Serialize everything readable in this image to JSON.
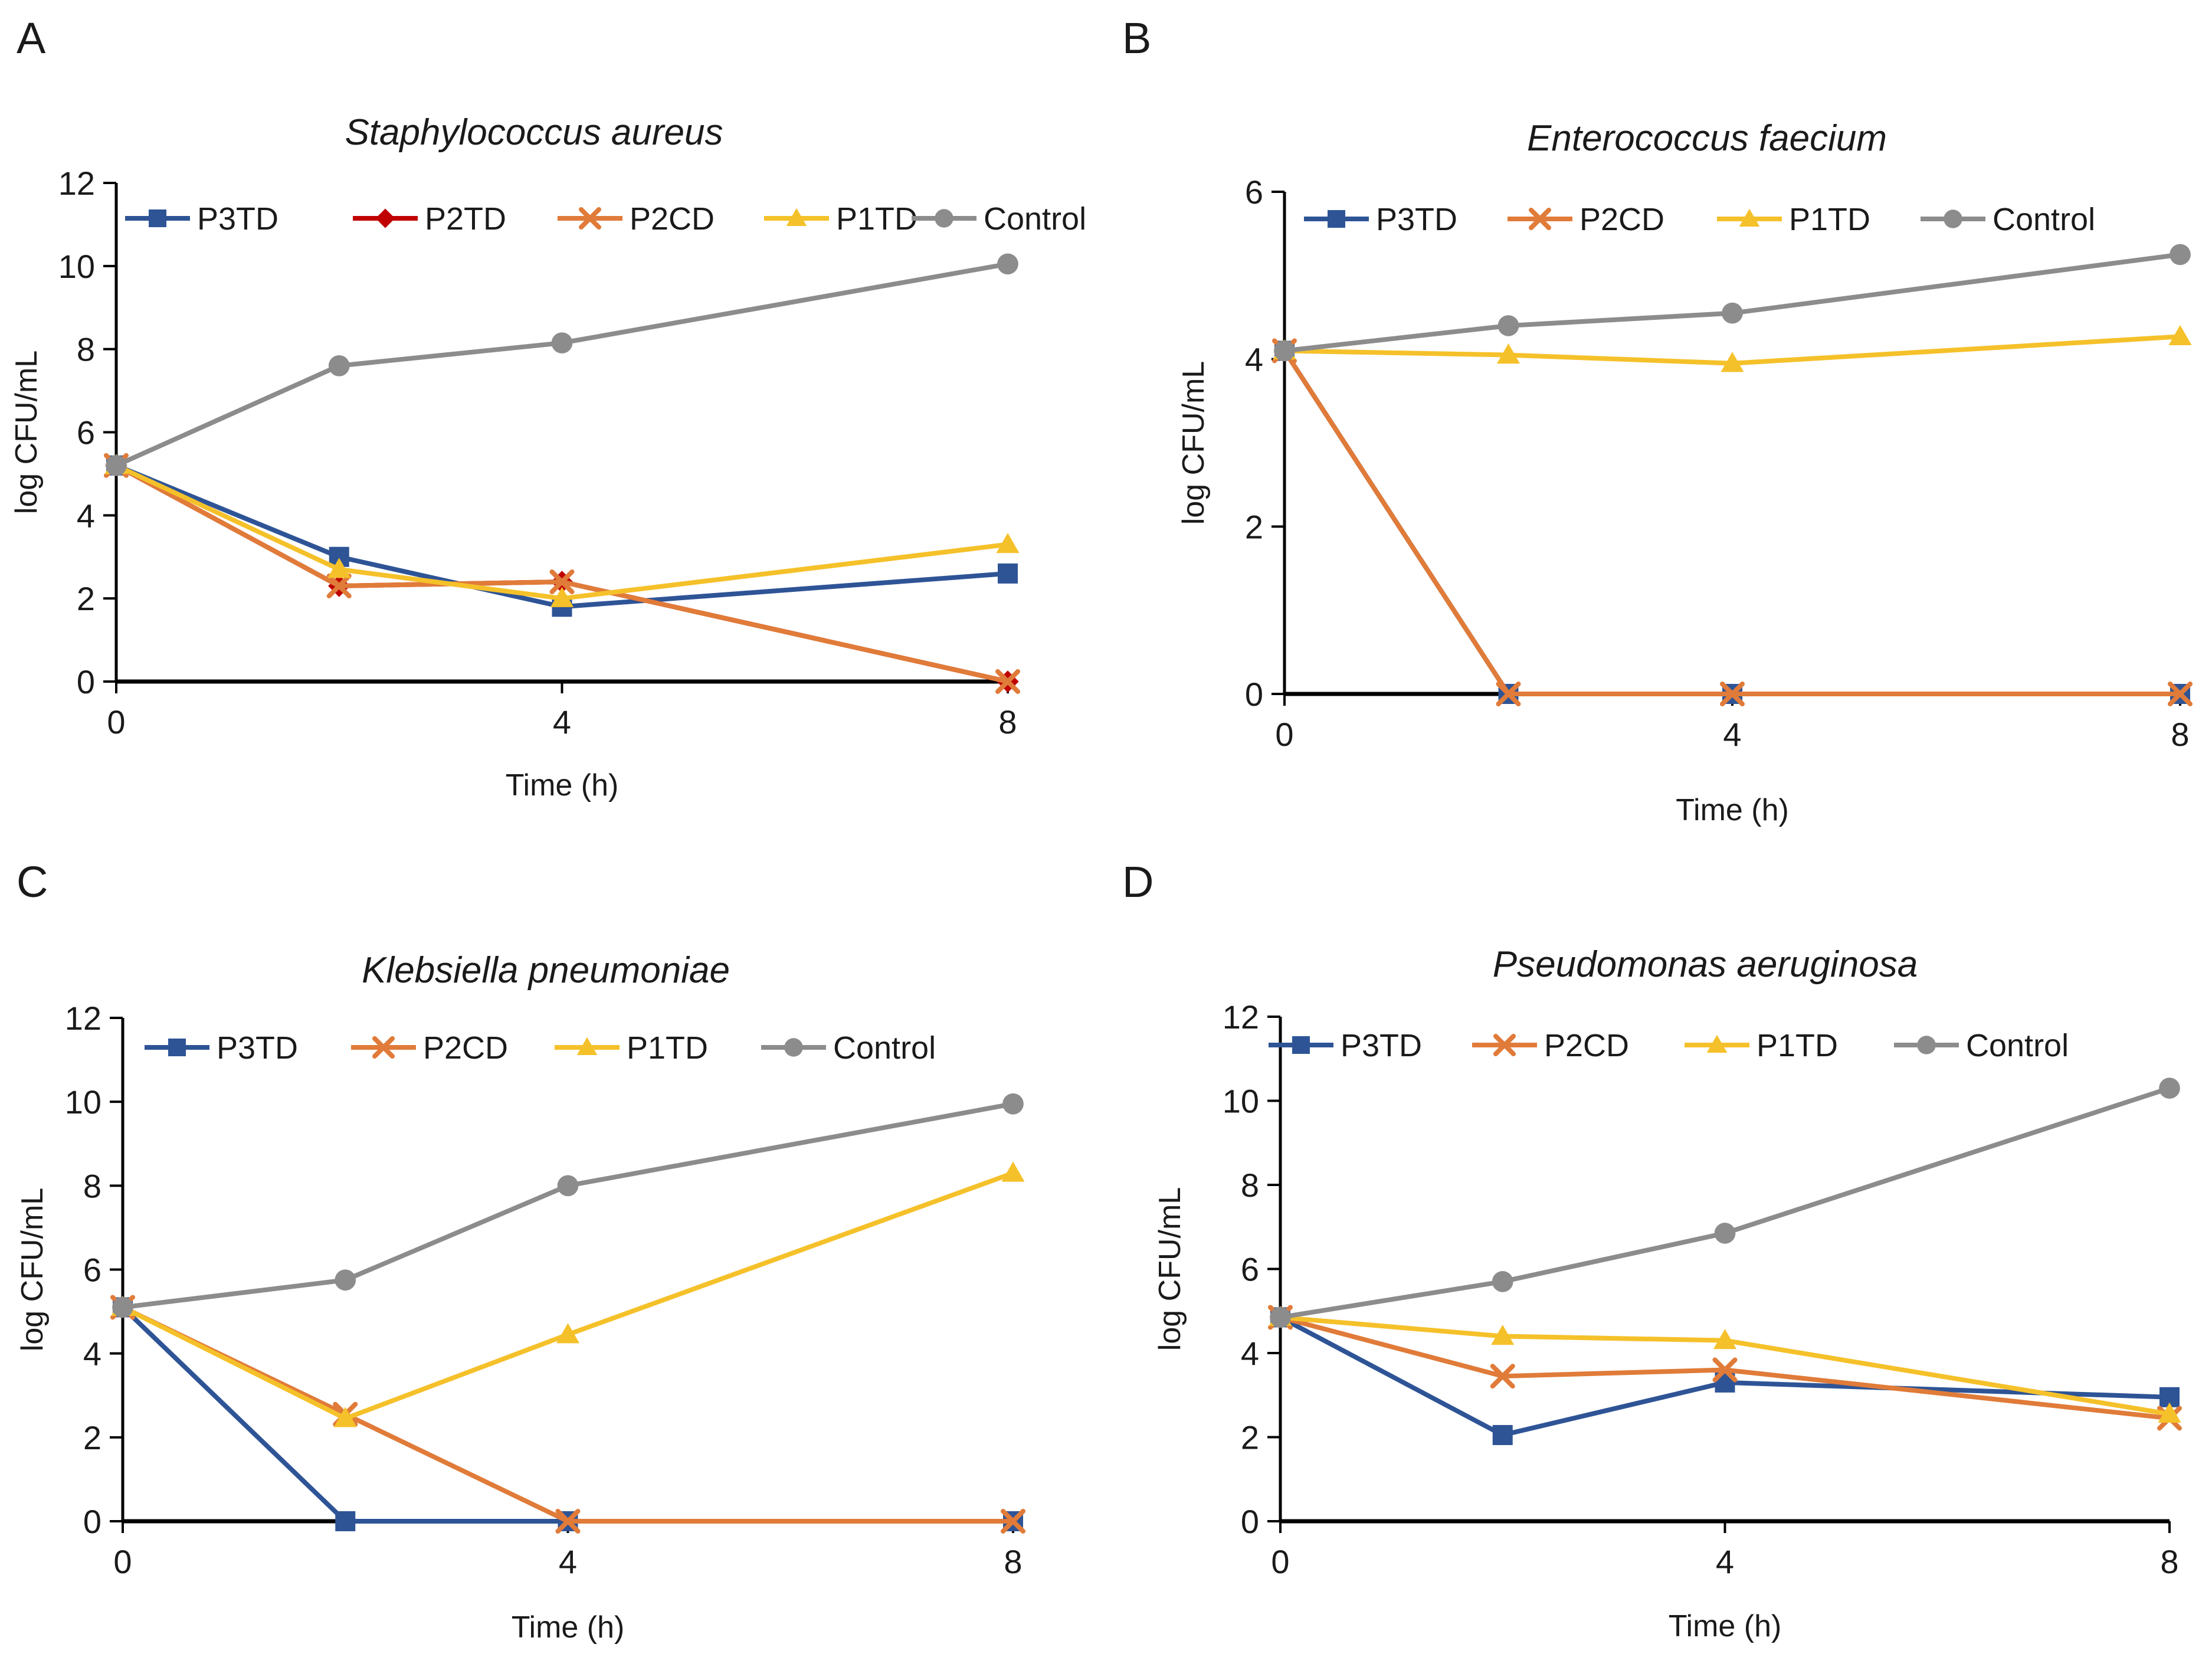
{
  "figure": {
    "panels": [
      {
        "letter": "A"
      },
      {
        "letter": "B"
      },
      {
        "letter": "C"
      },
      {
        "letter": "D"
      }
    ]
  },
  "series_colors": {
    "P3TD": "#2e5496",
    "P2TD": "#c00000",
    "P2CD": "#e07b39",
    "P1TD": "#f5c12a",
    "Control": "#8c8c8c"
  },
  "series_markers": {
    "P3TD": "square",
    "P2TD": "diamond",
    "P2CD": "x",
    "P1TD": "triangle",
    "Control": "circle"
  },
  "chart_data": [
    {
      "type": "line",
      "panel": "A",
      "title": "Staphylococcus aureus",
      "xlabel": "Time (h)",
      "ylabel": "log CFU/mL",
      "x": [
        0,
        2,
        4,
        8
      ],
      "xticks": [
        0,
        4,
        8
      ],
      "yticks": [
        0,
        2,
        4,
        6,
        8,
        10,
        12
      ],
      "xlim": [
        0,
        8
      ],
      "ylim": [
        0,
        12
      ],
      "legend": "top",
      "series": [
        {
          "name": "P3TD",
          "values": [
            5.2,
            3.0,
            1.8,
            2.6
          ]
        },
        {
          "name": "P2TD",
          "values": [
            5.2,
            2.3,
            2.4,
            0.0
          ]
        },
        {
          "name": "P2CD",
          "values": [
            5.2,
            2.3,
            2.4,
            0.0
          ]
        },
        {
          "name": "P1TD",
          "values": [
            5.2,
            2.7,
            2.0,
            3.3
          ]
        },
        {
          "name": "Control",
          "values": [
            5.2,
            7.6,
            8.15,
            10.05
          ]
        }
      ]
    },
    {
      "type": "line",
      "panel": "B",
      "title": "Enterococcus faecium",
      "xlabel": "Time (h)",
      "ylabel": "log CFU/mL",
      "x": [
        0,
        2,
        4,
        8
      ],
      "xticks": [
        0,
        4,
        8
      ],
      "yticks": [
        0,
        2,
        4,
        6
      ],
      "xlim": [
        0,
        8
      ],
      "ylim": [
        0,
        6
      ],
      "legend": "top",
      "series": [
        {
          "name": "P3TD",
          "values": [
            4.1,
            0.0,
            0.0,
            0.0
          ]
        },
        {
          "name": "P2CD",
          "values": [
            4.1,
            0.0,
            0.0,
            0.0
          ]
        },
        {
          "name": "P1TD",
          "values": [
            4.1,
            4.05,
            3.95,
            4.27
          ]
        },
        {
          "name": "Control",
          "values": [
            4.1,
            4.4,
            4.55,
            5.25
          ]
        }
      ]
    },
    {
      "type": "line",
      "panel": "C",
      "title": "Klebsiella pneumoniae",
      "xlabel": "Time (h)",
      "ylabel": "log CFU/mL",
      "x": [
        0,
        2,
        4,
        8
      ],
      "xticks": [
        0,
        4,
        8
      ],
      "yticks": [
        0,
        2,
        4,
        6,
        8,
        10,
        12
      ],
      "xlim": [
        0,
        8
      ],
      "ylim": [
        0,
        12
      ],
      "legend": "top",
      "series": [
        {
          "name": "P3TD",
          "values": [
            5.1,
            0.0,
            0.0,
            0.0
          ]
        },
        {
          "name": "P2CD",
          "values": [
            5.1,
            2.55,
            0.0,
            0.0
          ]
        },
        {
          "name": "P1TD",
          "values": [
            5.1,
            2.45,
            4.45,
            8.3
          ]
        },
        {
          "name": "Control",
          "values": [
            5.1,
            5.75,
            8.0,
            9.95
          ]
        }
      ]
    },
    {
      "type": "line",
      "panel": "D",
      "title": "Pseudomonas aeruginosa",
      "xlabel": "Time (h)",
      "ylabel": "log CFU/mL",
      "x": [
        0,
        2,
        4,
        8
      ],
      "xticks": [
        0,
        4,
        8
      ],
      "yticks": [
        0,
        2,
        4,
        6,
        8,
        10,
        12
      ],
      "xlim": [
        0,
        8
      ],
      "ylim": [
        0,
        12
      ],
      "legend": "top",
      "series": [
        {
          "name": "P3TD",
          "values": [
            4.85,
            2.05,
            3.3,
            2.95
          ]
        },
        {
          "name": "P2CD",
          "values": [
            4.85,
            3.45,
            3.6,
            2.45
          ]
        },
        {
          "name": "P1TD",
          "values": [
            4.85,
            4.4,
            4.3,
            2.55
          ]
        },
        {
          "name": "Control",
          "values": [
            4.85,
            5.7,
            6.85,
            10.3
          ]
        }
      ]
    }
  ]
}
